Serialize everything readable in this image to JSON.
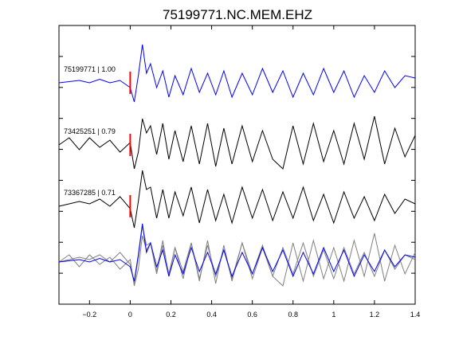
{
  "chart_data": {
    "type": "line",
    "title": "75199771.NC.MEM.EHZ",
    "xlabel": "",
    "ylabel": "",
    "xlim": [
      -0.35,
      1.4
    ],
    "xticks": [
      -0.2,
      0,
      0.2,
      0.4,
      0.6,
      0.8,
      1,
      1.2,
      1.4
    ],
    "xtick_labels": [
      "−0.2",
      "0",
      "0.2",
      "0.4",
      "0.6",
      "0.8",
      "1",
      "1.2",
      "1.4"
    ],
    "grid": false,
    "pick_time": 0,
    "colors": {
      "primary": "#0000ff",
      "secondary": "#000000",
      "overlay_other": "#808080",
      "pick": "#ff0000"
    },
    "series": [
      {
        "label": "75199771 | 1.00",
        "color": "#0000ff",
        "x": [
          -0.35,
          -0.3,
          -0.25,
          -0.2,
          -0.15,
          -0.1,
          -0.05,
          0,
          0.02,
          0.04,
          0.06,
          0.08,
          0.1,
          0.13,
          0.16,
          0.19,
          0.22,
          0.26,
          0.3,
          0.34,
          0.38,
          0.42,
          0.46,
          0.5,
          0.55,
          0.6,
          0.65,
          0.7,
          0.75,
          0.8,
          0.85,
          0.9,
          0.95,
          1,
          1.05,
          1.1,
          1.15,
          1.2,
          1.25,
          1.3,
          1.35,
          1.4
        ],
        "y": [
          0,
          0.05,
          0.1,
          0,
          0.15,
          0,
          0.1,
          -0.2,
          -0.8,
          0.3,
          1.6,
          0.4,
          0.8,
          -0.2,
          0.5,
          -0.6,
          0.3,
          -0.5,
          0.6,
          -0.4,
          0.4,
          -0.5,
          0.5,
          -0.6,
          0.4,
          -0.5,
          0.6,
          -0.4,
          0.5,
          -0.6,
          0.4,
          -0.5,
          0.6,
          -0.4,
          0.5,
          -0.6,
          0.3,
          -0.4,
          0.5,
          -0.2,
          0.3,
          0.2
        ]
      },
      {
        "label": "73425251 | 0.79",
        "color": "#000000",
        "x": [
          -0.35,
          -0.3,
          -0.25,
          -0.2,
          -0.15,
          -0.1,
          -0.05,
          0,
          0.02,
          0.04,
          0.06,
          0.08,
          0.1,
          0.13,
          0.16,
          0.19,
          0.22,
          0.26,
          0.3,
          0.34,
          0.38,
          0.42,
          0.46,
          0.5,
          0.55,
          0.6,
          0.65,
          0.7,
          0.75,
          0.8,
          0.85,
          0.9,
          0.95,
          1,
          1.05,
          1.1,
          1.15,
          1.2,
          1.25,
          1.3,
          1.35,
          1.4
        ],
        "y": [
          0,
          0.3,
          -0.2,
          0.3,
          -0.1,
          0.2,
          -0.3,
          0.1,
          -1.0,
          -0.3,
          1.1,
          0.5,
          0.8,
          -0.4,
          0.9,
          -0.6,
          0.6,
          -0.7,
          0.8,
          -0.8,
          0.9,
          -0.9,
          0.7,
          -0.8,
          0.8,
          -0.7,
          0.6,
          -0.6,
          -1.0,
          0.8,
          -0.8,
          0.9,
          -0.7,
          0.6,
          -0.8,
          0.9,
          -0.6,
          1.2,
          -0.8,
          0.7,
          -0.5,
          0.4
        ]
      },
      {
        "label": "73367285 | 0.71",
        "color": "#000000",
        "x": [
          -0.35,
          -0.3,
          -0.25,
          -0.2,
          -0.15,
          -0.1,
          -0.05,
          0,
          0.02,
          0.04,
          0.06,
          0.08,
          0.1,
          0.13,
          0.16,
          0.19,
          0.22,
          0.26,
          0.3,
          0.34,
          0.38,
          0.42,
          0.46,
          0.5,
          0.55,
          0.6,
          0.65,
          0.7,
          0.75,
          0.8,
          0.85,
          0.9,
          0.95,
          1,
          1.05,
          1.1,
          1.15,
          1.2,
          1.25,
          1.3,
          1.35,
          1.4
        ],
        "y": [
          0,
          0.1,
          0.2,
          0.1,
          0.3,
          0,
          0.4,
          -0.1,
          -0.9,
          0.2,
          1.5,
          0.7,
          0.8,
          -0.5,
          0.7,
          -0.5,
          0.6,
          -0.4,
          0.8,
          -0.7,
          0.7,
          -0.6,
          0.5,
          -0.7,
          0.8,
          -0.5,
          0.7,
          -0.6,
          0.6,
          -0.5,
          0.8,
          -0.6,
          0.5,
          -0.7,
          0.6,
          -0.5,
          0.4,
          -0.6,
          0.5,
          -0.3,
          0.3,
          0.1
        ]
      }
    ]
  }
}
